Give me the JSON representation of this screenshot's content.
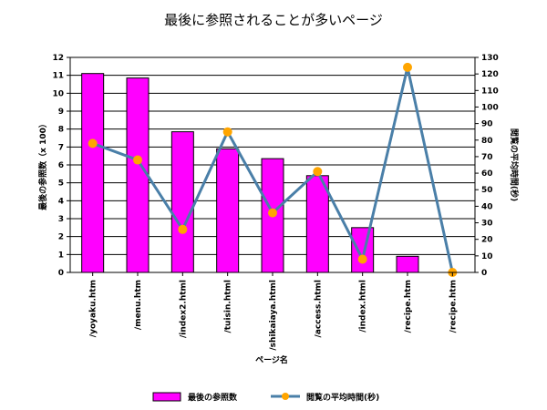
{
  "chart_data": {
    "type": "bar",
    "title": "最後に参照されることが多いページ",
    "xlabel": "ページ名",
    "ylabel": "最後の参照数（x 100）",
    "y2label": "閲覧の平均時間(秒)",
    "ylim": [
      0,
      12
    ],
    "y2lim": [
      0,
      130
    ],
    "yticks": [
      "0",
      "1",
      "2",
      "3",
      "4",
      "5",
      "6",
      "7",
      "8",
      "9",
      "10",
      "11",
      "12"
    ],
    "y2ticks": [
      "0",
      "10",
      "20",
      "30",
      "40",
      "50",
      "60",
      "70",
      "80",
      "90",
      "100",
      "110",
      "120",
      "130"
    ],
    "categories": [
      "/yoyaku.htm",
      "/menu.htm",
      "/index2.html",
      "/tuisin.html",
      "/shikaiaya.html",
      "/access.html",
      "/index.html",
      "/recipe.htm",
      "/recipe.htm"
    ],
    "series": [
      {
        "name": "最後の参照数",
        "type": "bar",
        "axis": "left",
        "color": "#ff00ff",
        "values": [
          11.1,
          10.85,
          7.85,
          6.9,
          6.35,
          5.4,
          2.5,
          0.9,
          0
        ]
      },
      {
        "name": "閲覧の平均時間(秒)",
        "type": "line",
        "axis": "right",
        "color": "#4a7fa8",
        "marker_color": "#ffa500",
        "values": [
          78,
          68,
          26,
          85,
          36,
          61,
          8,
          124,
          0
        ]
      }
    ],
    "grid": true,
    "legend_position": "bottom"
  }
}
